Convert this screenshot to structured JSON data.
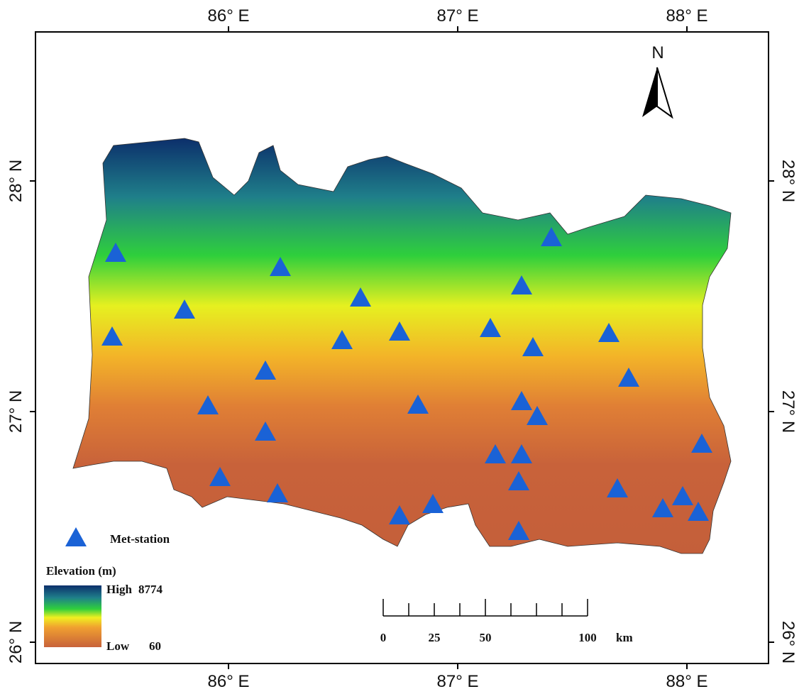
{
  "lon_ticks": [
    {
      "value": 86,
      "label": "86° E"
    },
    {
      "value": 87,
      "label": "87° E"
    },
    {
      "value": 88,
      "label": "88° E"
    }
  ],
  "lat_ticks": [
    {
      "value": 28,
      "label": "28° N"
    },
    {
      "value": 27,
      "label": "27° N"
    },
    {
      "value": 26,
      "label": "26° N"
    }
  ],
  "north_label": "N",
  "legend": {
    "station": "Met-station",
    "elevation_title": "Elevation (m)",
    "high_label": "High",
    "high_value": 8774,
    "low_label": "Low",
    "low_value": 60
  },
  "scale_bar": {
    "ticks": [
      0,
      25,
      50,
      100
    ],
    "unit": "km"
  }
}
